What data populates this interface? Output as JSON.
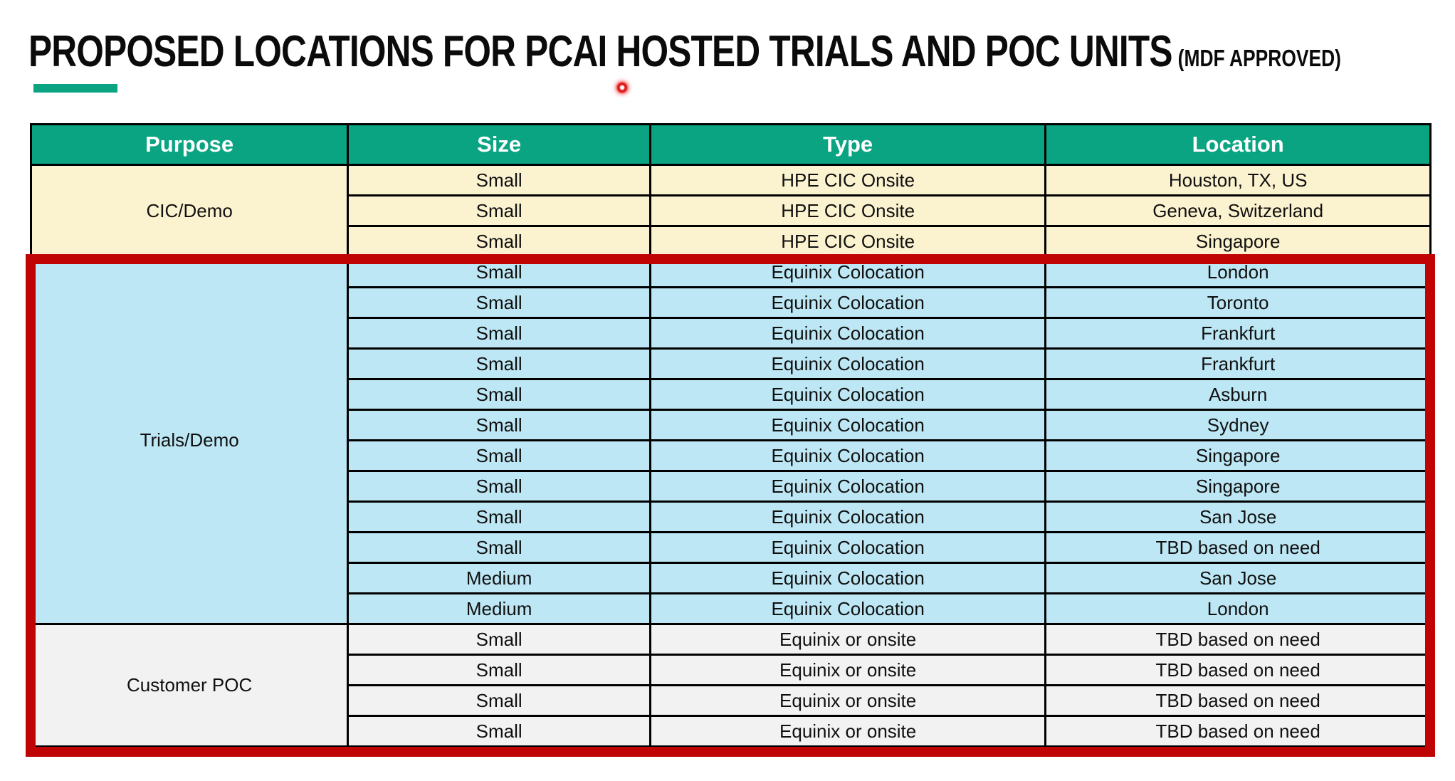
{
  "title": {
    "main": "PROPOSED LOCATIONS FOR PCAI HOSTED TRIALS AND POC UNITS",
    "suffix": "(MDF APPROVED)"
  },
  "table": {
    "columns": [
      "Purpose",
      "Size",
      "Type",
      "Location"
    ],
    "groups": [
      {
        "purpose": "CIC/Demo",
        "theme": "cream",
        "rows": [
          [
            "Small",
            "HPE CIC Onsite",
            "Houston, TX, US"
          ],
          [
            "Small",
            "HPE CIC Onsite",
            "Geneva, Switzerland"
          ],
          [
            "Small",
            "HPE CIC Onsite",
            "Singapore"
          ]
        ]
      },
      {
        "purpose": "Trials/Demo",
        "theme": "blue",
        "rows": [
          [
            "Small",
            "Equinix Colocation",
            "London"
          ],
          [
            "Small",
            "Equinix Colocation",
            "Toronto"
          ],
          [
            "Small",
            "Equinix Colocation",
            "Frankfurt"
          ],
          [
            "Small",
            "Equinix Colocation",
            "Frankfurt"
          ],
          [
            "Small",
            "Equinix Colocation",
            "Asburn"
          ],
          [
            "Small",
            "Equinix Colocation",
            "Sydney"
          ],
          [
            "Small",
            "Equinix Colocation",
            "Singapore"
          ],
          [
            "Small",
            "Equinix Colocation",
            "Singapore"
          ],
          [
            "Small",
            "Equinix Colocation",
            "San Jose"
          ],
          [
            "Small",
            "Equinix Colocation",
            "TBD based on need"
          ],
          [
            "Medium",
            "Equinix Colocation",
            "San Jose"
          ],
          [
            "Medium",
            "Equinix Colocation",
            "London"
          ]
        ]
      },
      {
        "purpose": "Customer POC",
        "theme": "gray",
        "rows": [
          [
            "Small",
            "Equinix or onsite",
            "TBD based on need"
          ],
          [
            "Small",
            "Equinix or onsite",
            "TBD based on need"
          ],
          [
            "Small",
            "Equinix or onsite",
            "TBD based on need"
          ],
          [
            "Small",
            "Equinix or onsite",
            "TBD based on need"
          ]
        ]
      }
    ]
  },
  "annotations": {
    "highlight_rectangle": "red box around Trials/Demo and Customer POC sections",
    "laser_pointer_dot": "red laser dot below title"
  },
  "colors": {
    "hpe_green": "#0aa483",
    "cream": "#fbf2cf",
    "blue": "#bde7f4",
    "gray": "#f2f2f2",
    "highlight_red": "#c00404",
    "header_text": "#ffffff",
    "body_text": "#101010"
  }
}
